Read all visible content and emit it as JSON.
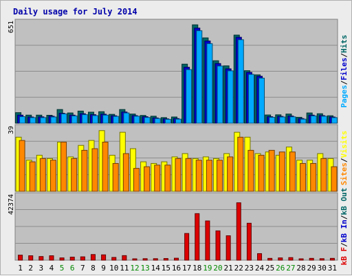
{
  "chart_data": {
    "type": "bar",
    "title": "Daily usage for July 2014",
    "categories": [
      "1",
      "2",
      "3",
      "4",
      "5",
      "6",
      "7",
      "8",
      "9",
      "10",
      "11",
      "12",
      "13",
      "14",
      "15",
      "16",
      "17",
      "18",
      "19",
      "20",
      "21",
      "22",
      "23",
      "24",
      "25",
      "26",
      "27",
      "28",
      "29",
      "30",
      "31"
    ],
    "weekend_days": [
      "5",
      "6",
      "12",
      "13",
      "19",
      "20",
      "26",
      "27"
    ],
    "panels": [
      {
        "id": "hits-files-pages",
        "max_label": "651",
        "ylim": [
          0,
          651
        ],
        "series": [
          {
            "name": "Hits",
            "color": "#006666",
            "values": [
              68,
              52,
              52,
              51,
              88,
              66,
              78,
              71,
              74,
              57,
              88,
              59,
              50,
              45,
              36,
              40,
              380,
              633,
              549,
              402,
              369,
              567,
              338,
              311,
              53,
              54,
              59,
              38,
              66,
              61,
              48
            ]
          },
          {
            "name": "Files",
            "color": "#0000cc",
            "values": [
              52,
              40,
              41,
              45,
              64,
              52,
              61,
              55,
              58,
              48,
              72,
              49,
              42,
              34,
              28,
              30,
              360,
              612,
              529,
              384,
              350,
              553,
              327,
              302,
              42,
              44,
              46,
              30,
              52,
              49,
              40
            ]
          },
          {
            "name": "Pages",
            "color": "#00aaff",
            "values": [
              42,
              36,
              36,
              40,
              60,
              47,
              55,
              49,
              52,
              44,
              66,
              45,
              37,
              30,
              25,
              26,
              345,
              595,
              512,
              368,
              337,
              537,
              314,
              290,
              38,
              40,
              41,
              26,
              47,
              45,
              36
            ]
          }
        ],
        "legend": [
          "Pages",
          "/",
          "Files",
          "/",
          "Hits"
        ],
        "legend_colors": [
          "#00aaff",
          "#000000",
          "#0000cc",
          "#000000",
          "#006666"
        ]
      },
      {
        "id": "visits-sites",
        "max_label": "39",
        "ylim": [
          0,
          39
        ],
        "series": [
          {
            "name": "Visits",
            "color": "#ffff00",
            "values": [
              33,
              19,
              22,
              20,
              30,
              21,
              28,
              31,
              37,
              22,
              36,
              26,
              18,
              17,
              18,
              21,
              23,
              20,
              21,
              20,
              23,
              36,
              33,
              23,
              24,
              22,
              27,
              19,
              19,
              23,
              20
            ]
          },
          {
            "name": "Sites",
            "color": "#ff8800",
            "values": [
              31,
              18,
              20,
              19,
              30,
              20,
              25,
              26,
              30,
              17,
              23,
              14,
              15,
              16,
              16,
              20,
              20,
              19,
              19,
              19,
              21,
              33,
              25,
              22,
              25,
              24,
              24,
              17,
              17,
              20,
              15
            ]
          }
        ],
        "legend": [
          "Sites",
          "/",
          "Visits"
        ],
        "legend_colors": [
          "#ff8800",
          "#000000",
          "#ffff00"
        ]
      },
      {
        "id": "kb",
        "max_label": "42374",
        "ylim": [
          0,
          42374
        ],
        "series": [
          {
            "name": "kB F",
            "color": "#dd0000",
            "values": [
              3300,
              2900,
              2400,
              2900,
              1500,
              2000,
              2200,
              3700,
              3500,
              1800,
              3000,
              900,
              1000,
              1000,
              1100,
              1300,
              17500,
              30500,
              25700,
              19200,
              16000,
              37600,
              24200,
              4300,
              1200,
              1500,
              1700,
              900,
              1200,
              1000,
              1200
            ]
          }
        ],
        "legend": [
          "kB F",
          "/",
          "kB In",
          "/",
          "kB Out"
        ],
        "legend_colors": [
          "#dd0000",
          "#000000",
          "#0000cc",
          "#000000",
          "#006666"
        ]
      }
    ],
    "grid": true,
    "legend_position": "right"
  }
}
